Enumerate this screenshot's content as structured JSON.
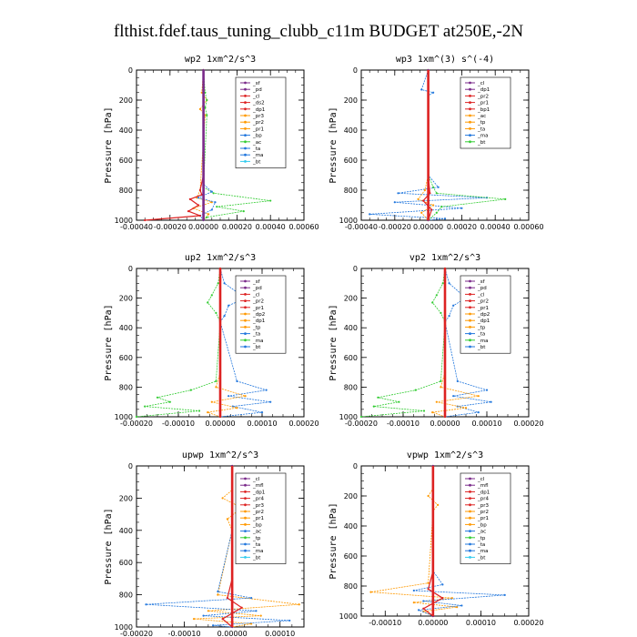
{
  "figure": {
    "title": "flthist.fdef.taus_tuning_clubb_c11m  BUDGET at250E,-2N"
  },
  "chart_data": [
    {
      "type": "line",
      "title": "wp2   1xm^2/s^3",
      "ylabel": "Pressure [hPa]",
      "xlim": [
        -0.0004,
        0.0006
      ],
      "ylim": [
        1000,
        0
      ],
      "xticks": [
        "-0.00040",
        "-0.00020",
        "0.00000",
        "0.00020",
        "0.00040",
        "0.00060"
      ],
      "xtick_values": [
        -0.0004,
        -0.0002,
        0,
        0.0002,
        0.0004,
        0.0006
      ],
      "yticks": [
        "0",
        "200",
        "400",
        "600",
        "800",
        "1000"
      ],
      "ytick_values": [
        0,
        200,
        400,
        600,
        800,
        1000
      ],
      "legend_position": "top-right",
      "legend": [
        "_sf",
        "_pd",
        "_cl",
        "_ds2",
        "_dp1",
        "_pr3",
        "_pr2",
        "_pr1",
        "_bp",
        "_ac",
        "_ta",
        "_ma",
        "_bt"
      ],
      "series": [
        {
          "name": "_pr1",
          "color": "#ff9900",
          "x": [
            0,
            -1e-05,
            2e-05,
            -2e-05,
            1e-05,
            -2e-05,
            -4e-05,
            5e-05,
            -6e-05,
            3e-05,
            0
          ],
          "y": [
            0,
            150,
            200,
            260,
            300,
            800,
            850,
            880,
            920,
            960,
            1000
          ]
        },
        {
          "name": "_ac",
          "color": "#33cc33",
          "x": [
            0,
            1e-05,
            2e-05,
            1e-05,
            2e-05,
            0,
            6e-05,
            0.0004,
            8e-05,
            0.00024,
            2e-05,
            0
          ],
          "y": [
            0,
            150,
            200,
            250,
            300,
            780,
            820,
            870,
            910,
            940,
            980,
            1000
          ]
        },
        {
          "name": "_bp",
          "color": "#2277dd",
          "x": [
            0,
            0,
            0,
            5e-05,
            -3e-05,
            7e-05,
            5e-05,
            -2e-05,
            0
          ],
          "y": [
            0,
            300,
            760,
            810,
            850,
            880,
            930,
            970,
            1000
          ]
        },
        {
          "name": "_dp1",
          "color": "#dd2222",
          "x": [
            0,
            0,
            -2e-05,
            -1e-05,
            -8e-05,
            -3e-05,
            -9e-05,
            -2e-05,
            -0.00035
          ],
          "y": [
            0,
            700,
            800,
            830,
            860,
            900,
            940,
            970,
            1000
          ]
        },
        {
          "name": "_pd",
          "color": "#7a2a8a",
          "x": [
            0,
            0,
            0,
            0
          ],
          "y": [
            0,
            500,
            900,
            1000
          ]
        }
      ]
    },
    {
      "type": "line",
      "title": "wp3   1xm^(3) s^(-4)",
      "ylabel": "Pressure [hPa]",
      "xlim": [
        -0.0004,
        0.0006
      ],
      "ylim": [
        1000,
        0
      ],
      "xticks": [
        "-0.00040",
        "-0.00020",
        "0.00000",
        "0.00020",
        "0.00040",
        "0.00060"
      ],
      "xtick_values": [
        -0.0004,
        -0.0002,
        0,
        0.0002,
        0.0004,
        0.0006
      ],
      "yticks": [
        "0",
        "200",
        "400",
        "600",
        "800",
        "1000"
      ],
      "ytick_values": [
        0,
        200,
        400,
        600,
        800,
        1000
      ],
      "legend_position": "top-right",
      "legend": [
        "_cl",
        "_dp1",
        "_pr2",
        "_pr1",
        "_bp1",
        "_ac",
        "_tp",
        "_ta",
        "_ma",
        "_bt"
      ],
      "series": [
        {
          "name": "_tp",
          "color": "#2277dd",
          "x": [
            0,
            -4e-05,
            3e-05,
            0,
            0,
            6e-05,
            -0.00018,
            0.00035,
            -0.0002,
            0.0002,
            -0.00035,
            0.0001,
            0
          ],
          "y": [
            0,
            130,
            150,
            170,
            700,
            780,
            820,
            850,
            880,
            920,
            960,
            990,
            1000
          ]
        },
        {
          "name": "_ac",
          "color": "#33cc33",
          "x": [
            0,
            0,
            3e-05,
            5e-05,
            0.00046,
            8e-05,
            5e-05,
            0
          ],
          "y": [
            0,
            700,
            780,
            820,
            860,
            910,
            950,
            1000
          ]
        },
        {
          "name": "_pr1",
          "color": "#ff9900",
          "x": [
            0,
            0,
            -2e-05,
            -6e-05,
            3e-05,
            -4e-05,
            0
          ],
          "y": [
            0,
            700,
            800,
            860,
            900,
            950,
            1000
          ]
        },
        {
          "name": "_dp1",
          "color": "#dd2222",
          "x": [
            0,
            0,
            1e-05,
            -3e-05,
            2e-05,
            0
          ],
          "y": [
            0,
            700,
            820,
            870,
            930,
            1000
          ]
        },
        {
          "name": "_cl",
          "color": "#7a2a8a",
          "x": [
            0,
            0,
            0
          ],
          "y": [
            0,
            500,
            1000
          ]
        }
      ]
    },
    {
      "type": "line",
      "title": "up2   1xm^2/s^3",
      "ylabel": "Pressure [hPa]",
      "xlim": [
        -0.0002,
        0.0002
      ],
      "ylim": [
        1000,
        0
      ],
      "xticks": [
        "-0.00020",
        "-0.00010",
        "0.00000",
        "0.00010",
        "0.00020"
      ],
      "xtick_values": [
        -0.0002,
        -0.0001,
        0,
        0.0001,
        0.0002
      ],
      "yticks": [
        "0",
        "200",
        "400",
        "600",
        "800",
        "1000"
      ],
      "ytick_values": [
        0,
        200,
        400,
        600,
        800,
        1000
      ],
      "legend_position": "top-right",
      "legend": [
        "_sf",
        "_pd",
        "_cl",
        "_pr2",
        "_pr1",
        "_dp2",
        "_dp1",
        "_tp",
        "_ta",
        "_ma",
        "_bt"
      ],
      "series": [
        {
          "name": "_dp1",
          "color": "#33cc33",
          "x": [
            0,
            -5e-06,
            -2e-05,
            -3e-05,
            -1e-05,
            0,
            -1e-05,
            -7e-05,
            -0.00015,
            -0.00012,
            -0.00018,
            -5e-05,
            -0.0002
          ],
          "y": [
            0,
            100,
            180,
            230,
            300,
            360,
            760,
            820,
            870,
            900,
            930,
            960,
            1000
          ]
        },
        {
          "name": "_tp",
          "color": "#2277dd",
          "x": [
            0,
            1e-05,
            6e-05,
            2e-05,
            1e-05,
            0,
            4e-05,
            0.00011,
            2e-05,
            0.00012,
            3e-05,
            0.0001,
            0
          ],
          "y": [
            0,
            100,
            200,
            250,
            320,
            360,
            760,
            820,
            860,
            900,
            930,
            970,
            1000
          ]
        },
        {
          "name": "_pr1",
          "color": "#ff9900",
          "x": [
            0,
            0,
            -1e-05,
            6e-05,
            -2e-05,
            4e-05,
            -3e-05,
            0
          ],
          "y": [
            0,
            700,
            800,
            860,
            900,
            940,
            970,
            1000
          ]
        },
        {
          "name": "_cl",
          "color": "#dd2222",
          "x": [
            0,
            0,
            0
          ],
          "y": [
            0,
            500,
            1000
          ]
        }
      ]
    },
    {
      "type": "line",
      "title": "vp2   1xm^2/s^3",
      "ylabel": "Pressure [hPa]",
      "xlim": [
        -0.0002,
        0.0002
      ],
      "ylim": [
        1000,
        0
      ],
      "xticks": [
        "-0.00020",
        "-0.00010",
        "0.00000",
        "0.00010",
        "0.00020"
      ],
      "xtick_values": [
        -0.0002,
        -0.0001,
        0,
        0.0001,
        0.0002
      ],
      "yticks": [
        "0",
        "200",
        "400",
        "600",
        "800",
        "1000"
      ],
      "ytick_values": [
        0,
        200,
        400,
        600,
        800,
        1000
      ],
      "legend_position": "top-right",
      "legend": [
        "_sf",
        "_pd",
        "_cl",
        "_pr2",
        "_pr1",
        "_dp2",
        "_dp1",
        "_tp",
        "_ta",
        "_ma",
        "_bt"
      ],
      "series": [
        {
          "name": "_dp1",
          "color": "#33cc33",
          "x": [
            0,
            -5e-06,
            -2e-05,
            -3e-05,
            -1e-05,
            0,
            -1e-05,
            -7e-05,
            -0.00016,
            -0.00011,
            -0.00017,
            -5e-05,
            -0.0002
          ],
          "y": [
            0,
            100,
            180,
            230,
            300,
            360,
            760,
            820,
            870,
            900,
            930,
            960,
            1000
          ]
        },
        {
          "name": "_tp",
          "color": "#2277dd",
          "x": [
            0,
            1e-05,
            5e-05,
            2e-05,
            1e-05,
            0,
            3e-05,
            0.0001,
            2e-05,
            0.00011,
            3e-05,
            8e-05,
            0
          ],
          "y": [
            0,
            100,
            200,
            250,
            320,
            360,
            760,
            820,
            860,
            900,
            930,
            970,
            1000
          ]
        },
        {
          "name": "_pr1",
          "color": "#ff9900",
          "x": [
            0,
            0,
            -1e-05,
            8e-05,
            -2e-05,
            5e-05,
            -3e-05,
            0
          ],
          "y": [
            0,
            700,
            800,
            860,
            900,
            940,
            970,
            1000
          ]
        },
        {
          "name": "_cl",
          "color": "#dd2222",
          "x": [
            0,
            0,
            0
          ],
          "y": [
            0,
            500,
            1000
          ]
        }
      ]
    },
    {
      "type": "line",
      "title": "upwp   1xm^2/s^3",
      "ylabel": "Pressure [hPa]",
      "xlim": [
        -0.0002,
        0.00015
      ],
      "ylim": [
        1000,
        0
      ],
      "xticks": [
        "-0.00020",
        "-0.00010",
        "0.00000",
        "0.00010"
      ],
      "xtick_values": [
        -0.0002,
        -0.0001,
        0,
        0.0001
      ],
      "yticks": [
        "0",
        "200",
        "400",
        "600",
        "800",
        "1000"
      ],
      "ytick_values": [
        0,
        200,
        400,
        600,
        800,
        1000
      ],
      "legend_position": "top-right",
      "legend": [
        "_cl",
        "_mfl",
        "_dp1",
        "_pr4",
        "_pr3",
        "_pr2",
        "_pr1",
        "_bp",
        "_ac",
        "_tp",
        "_ta",
        "_ma",
        "_bt"
      ],
      "series": [
        {
          "name": "_pr1",
          "color": "#ff9900",
          "x": [
            0,
            0,
            -2e-05,
            2e-05,
            -1e-05,
            0,
            -3e-05,
            0.00014,
            -5e-05,
            6e-05,
            -8e-05,
            4e-05,
            0
          ],
          "y": [
            0,
            150,
            200,
            260,
            330,
            400,
            800,
            860,
            900,
            930,
            950,
            980,
            1000
          ]
        },
        {
          "name": "_tp",
          "color": "#2277dd",
          "x": [
            0,
            0,
            -3e-05,
            4e-05,
            -0.00018,
            5e-05,
            -6e-05,
            0.00012,
            -4e-05,
            0
          ],
          "y": [
            0,
            400,
            780,
            820,
            860,
            900,
            930,
            960,
            990,
            1000
          ]
        },
        {
          "name": "_dp1",
          "color": "#dd2222",
          "x": [
            0,
            0,
            -1e-05,
            2e-05,
            -2e-05,
            0
          ],
          "y": [
            0,
            700,
            820,
            880,
            950,
            1000
          ]
        },
        {
          "name": "_cl",
          "color": "#7a2a8a",
          "x": [
            0,
            0,
            0
          ],
          "y": [
            0,
            500,
            1000
          ]
        }
      ]
    },
    {
      "type": "line",
      "title": "vpwp   1xm^2/s^3",
      "ylabel": "Pressure [hPa]",
      "xlim": [
        -0.00015,
        0.0002
      ],
      "ylim": [
        1000,
        0
      ],
      "xticks": [
        "-0.00010",
        "0.00000",
        "0.00010",
        "0.00020"
      ],
      "xtick_values": [
        -0.0001,
        0,
        0.0001,
        0.0002
      ],
      "yticks": [
        "0",
        "200",
        "400",
        "600",
        "800",
        "1000"
      ],
      "ytick_values": [
        0,
        200,
        400,
        600,
        800,
        1000
      ],
      "legend_position": "top-right",
      "legend": [
        "_cl",
        "_mfl",
        "_dp1",
        "_pr4",
        "_pr3",
        "_pr2",
        "_pr1",
        "_bp",
        "_ac",
        "_tp",
        "_ta",
        "_ma",
        "_bt"
      ],
      "series": [
        {
          "name": "_pr1",
          "color": "#ff9900",
          "x": [
            0,
            0,
            -1e-05,
            1e-05,
            0,
            -1e-05,
            -0.00013,
            4e-05,
            -4e-05,
            5e-05,
            -2e-05,
            0
          ],
          "y": [
            0,
            150,
            200,
            260,
            300,
            780,
            840,
            880,
            910,
            940,
            970,
            1000
          ]
        },
        {
          "name": "_tp",
          "color": "#2277dd",
          "x": [
            0,
            0,
            2e-05,
            -4e-05,
            0.00015,
            -2e-05,
            6e-05,
            -3e-05,
            0
          ],
          "y": [
            0,
            700,
            790,
            830,
            860,
            900,
            930,
            960,
            1000
          ]
        },
        {
          "name": "_dp1",
          "color": "#dd2222",
          "x": [
            0,
            0,
            -1e-05,
            2e-05,
            -2e-05,
            0
          ],
          "y": [
            0,
            700,
            820,
            880,
            950,
            1000
          ]
        },
        {
          "name": "_cl",
          "color": "#7a2a8a",
          "x": [
            0,
            0,
            0
          ],
          "y": [
            0,
            500,
            1000
          ]
        }
      ]
    }
  ]
}
